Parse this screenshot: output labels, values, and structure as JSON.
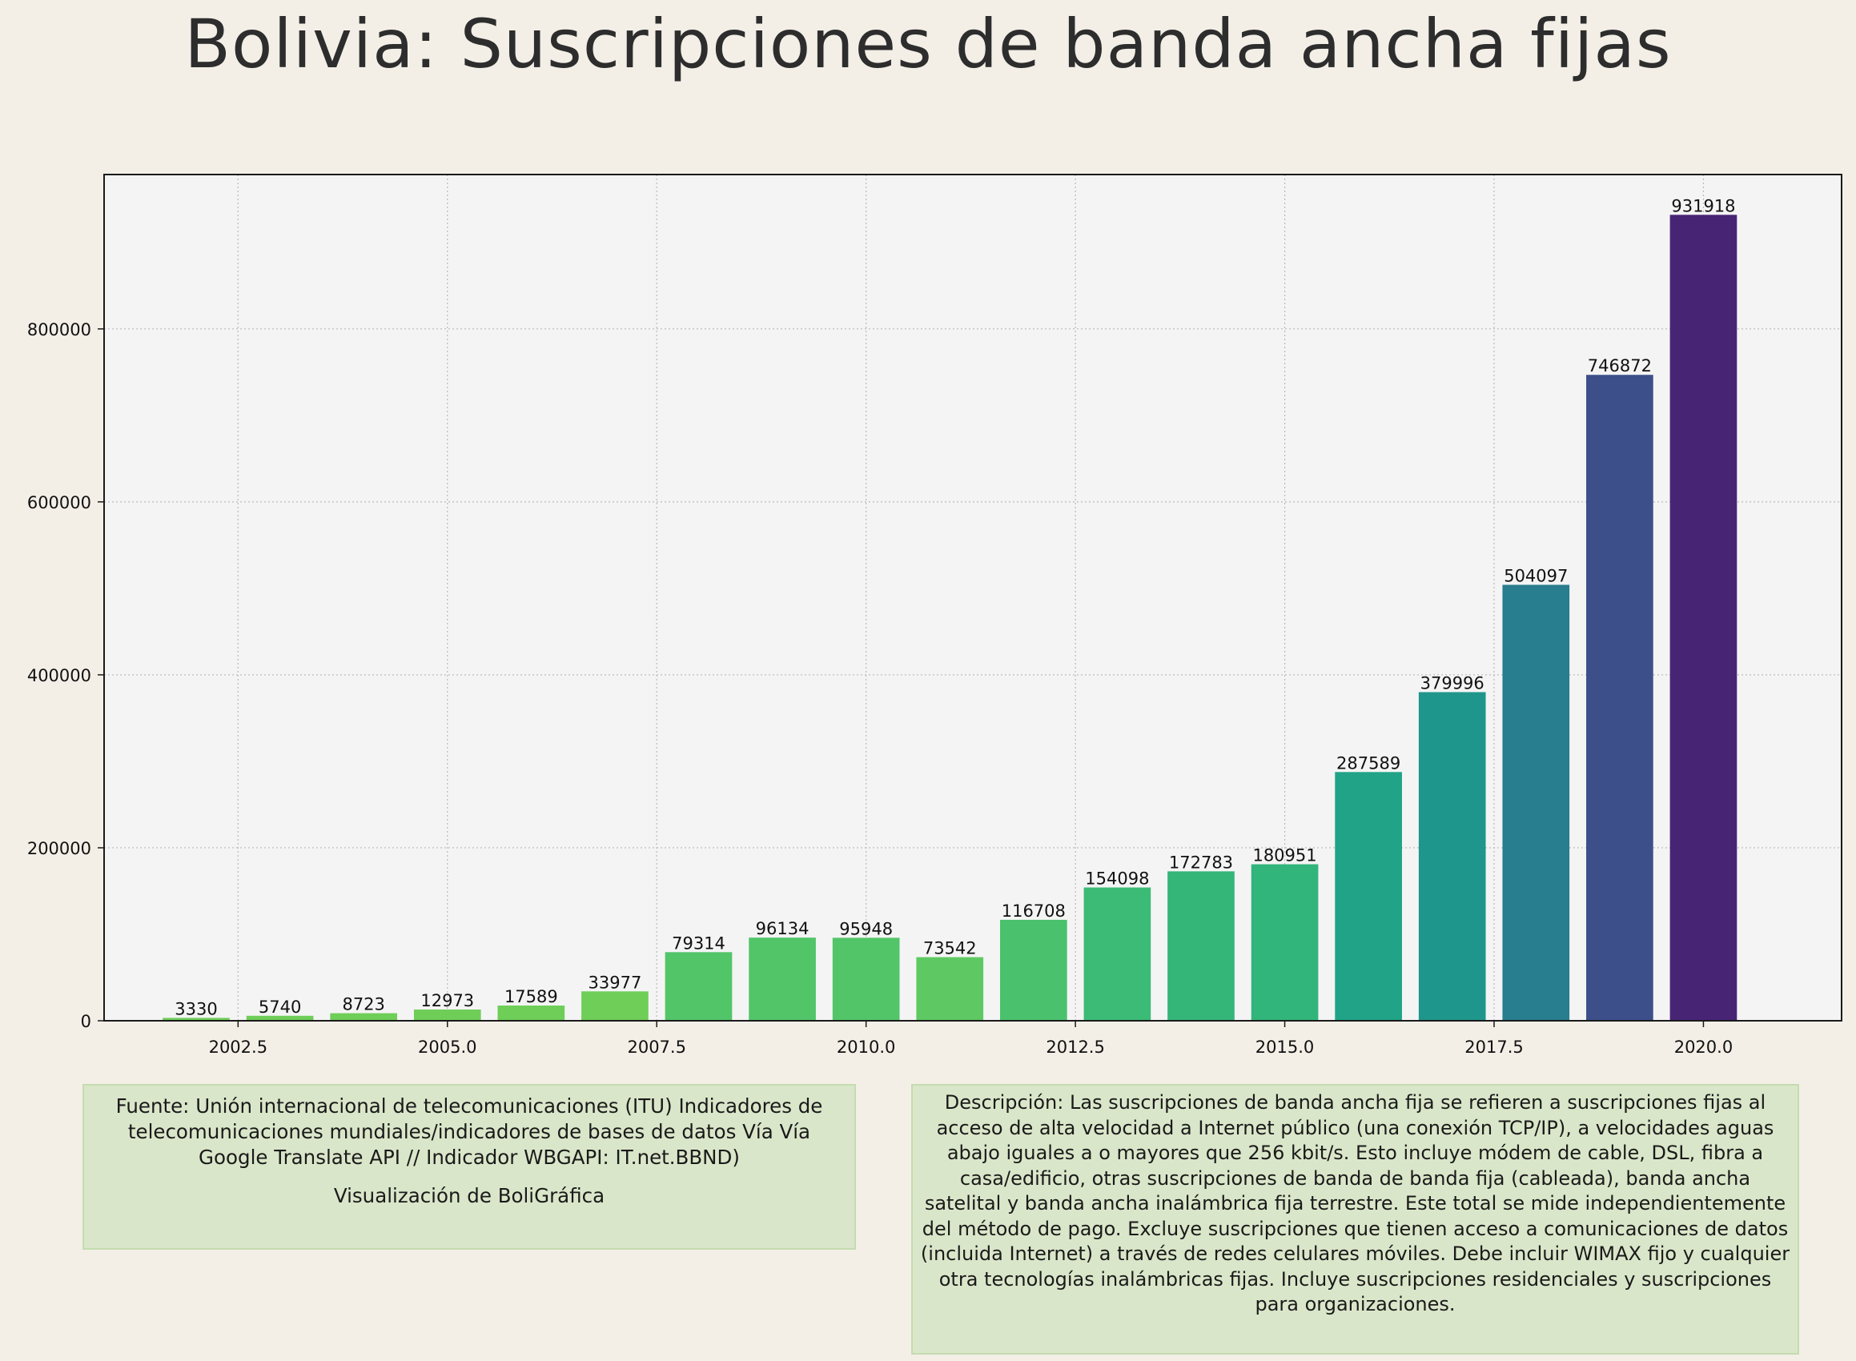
{
  "title": "Bolivia:  Suscripciones de banda ancha fijas",
  "chart_data": {
    "type": "bar",
    "title": "Bolivia:  Suscripciones de banda ancha fijas",
    "xlabel": "",
    "ylabel": "",
    "x": [
      2002,
      2003,
      2004,
      2005,
      2006,
      2007,
      2008,
      2009,
      2010,
      2011,
      2012,
      2013,
      2014,
      2015,
      2016,
      2017,
      2018,
      2019,
      2020
    ],
    "values": [
      3330,
      5740,
      8723,
      12973,
      17589,
      33977,
      79314,
      96134,
      95948,
      73542,
      116708,
      154098,
      172783,
      180951,
      287589,
      379996,
      504097,
      746872,
      931918
    ],
    "value_labels": [
      "3330",
      "5740",
      "8723",
      "12973",
      "17589",
      "33977",
      "79314",
      "96134",
      "95948",
      "73542",
      "116708",
      "154098",
      "172783",
      "180951",
      "287589",
      "379996",
      "504097",
      "746872",
      "931918"
    ],
    "colors": [
      "#6ece58",
      "#6ece58",
      "#6ece58",
      "#6ece58",
      "#6ece58",
      "#6ece58",
      "#52c569",
      "#52c569",
      "#52c569",
      "#5ec962",
      "#4ac16d",
      "#3bbb75",
      "#34b679",
      "#31b57b",
      "#20a386",
      "#1f968b",
      "#287d8e",
      "#3c4f8a",
      "#482475"
    ],
    "x_ticks": [
      2002.5,
      2005.0,
      2007.5,
      2010.0,
      2012.5,
      2015.0,
      2017.5,
      2020.0
    ],
    "x_tick_labels": [
      "2002.5",
      "2005.0",
      "2007.5",
      "2010.0",
      "2012.5",
      "2015.0",
      "2017.5",
      "2020.0"
    ],
    "y_ticks": [
      0,
      200000,
      400000,
      600000,
      800000
    ],
    "y_tick_labels": [
      "0",
      "200000",
      "400000",
      "600000",
      "800000"
    ],
    "xlim": [
      2000.9,
      2021.65
    ],
    "ylim": [
      0,
      978514
    ],
    "grid": true,
    "legend": "none"
  },
  "source_text": "Fuente: Unión internacional de telecomunicaciones (ITU) Indicadores de telecomunicaciones mundiales/indicadores de bases de datos Vía Vía Google Translate API // Indicador WBGAPI: IT.net.BBND)",
  "credit_text": "Visualización de BoliGráfica",
  "description_text": "Descripción: Las suscripciones de banda ancha fija se refieren a suscripciones fijas al acceso de alta velocidad a Internet público (una conexión TCP/IP), a velocidades aguas abajo iguales a o mayores que 256 kbit/s. Esto incluye módem de cable, DSL, fibra a casa/edificio, otras suscripciones de banda de banda fija (cableada), banda ancha satelital y banda ancha inalámbrica fija terrestre. Este total se mide independientemente del método de pago. Excluye suscripciones que tienen acceso a comunicaciones de datos (incluida Internet) a través de redes celulares móviles. Debe incluir WIMAX fijo y cualquier otra tecnologías inalámbricas fijas. Incluye suscripciones residenciales y suscripciones para organizaciones.",
  "colors": {
    "background": "#f3efe7",
    "plot_background": "#f4f4f4",
    "note_box": "#dae6c9"
  }
}
